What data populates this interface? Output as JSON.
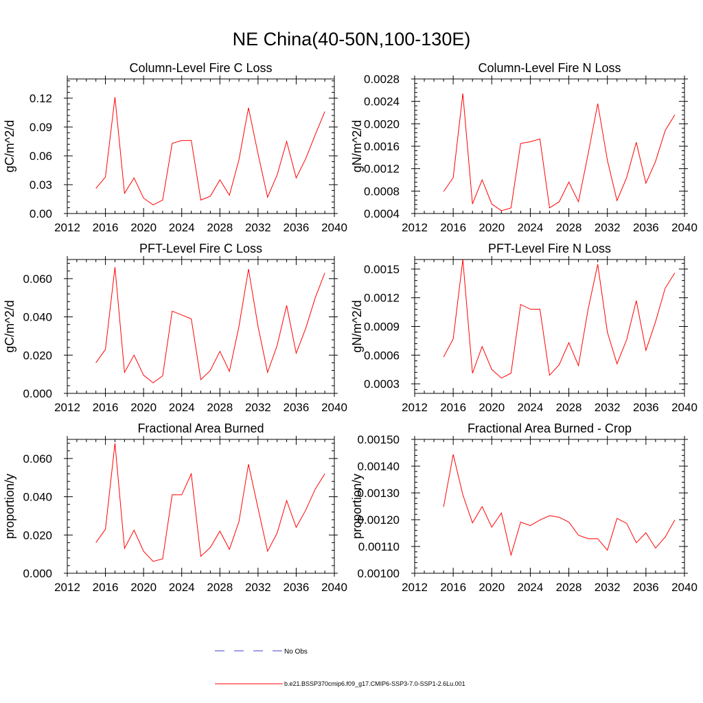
{
  "figure": {
    "title": "NE China(40-50N,100-130E)"
  },
  "legend": {
    "obs_label": "No Obs",
    "model_label": "b.e21.BSSP370cmip6.f09_g17.CMIP6-SSP3-7.0-SSP1-2.6Lu.001",
    "model_color": "#ff0000",
    "obs_color": "#3b3bd0"
  },
  "chart_data": [
    {
      "type": "line",
      "title": "Column-Level Fire C Loss",
      "ylabel": "gC/m^2/d",
      "xlabel": "",
      "xlim": [
        2012,
        2040
      ],
      "ylim": [
        0.0,
        0.14
      ],
      "xticks": [
        "2012",
        "2016",
        "2020",
        "2024",
        "2028",
        "2032",
        "2036",
        "2040"
      ],
      "yticks": [
        "0.00",
        "0.03",
        "0.06",
        "0.09",
        "0.12"
      ],
      "x": [
        2015,
        2016,
        2017,
        2018,
        2019,
        2020,
        2021,
        2022,
        2023,
        2024,
        2025,
        2026,
        2027,
        2028,
        2029,
        2030,
        2031,
        2032,
        2033,
        2034,
        2035,
        2036,
        2037,
        2038,
        2039
      ],
      "series": [
        {
          "values": [
            0.026,
            0.038,
            0.121,
            0.021,
            0.037,
            0.016,
            0.009,
            0.014,
            0.073,
            0.076,
            0.076,
            0.014,
            0.018,
            0.035,
            0.019,
            0.056,
            0.11,
            0.062,
            0.017,
            0.04,
            0.075,
            0.037,
            0.057,
            0.082,
            0.106
          ]
        }
      ]
    },
    {
      "type": "line",
      "title": "Column-Level Fire N Loss",
      "ylabel": "gN/m^2/d",
      "xlabel": "",
      "xlim": [
        2012,
        2040
      ],
      "ylim": [
        0.0004,
        0.0028
      ],
      "xticks": [
        "2012",
        "2016",
        "2020",
        "2024",
        "2028",
        "2032",
        "2036",
        "2040"
      ],
      "yticks": [
        "0.0004",
        "0.0008",
        "0.0012",
        "0.0016",
        "0.0020",
        "0.0024",
        "0.0028"
      ],
      "x": [
        2015,
        2016,
        2017,
        2018,
        2019,
        2020,
        2021,
        2022,
        2023,
        2024,
        2025,
        2026,
        2027,
        2028,
        2029,
        2030,
        2031,
        2032,
        2033,
        2034,
        2035,
        2036,
        2037,
        2038,
        2039
      ],
      "series": [
        {
          "values": [
            0.00079,
            0.00104,
            0.00254,
            0.00057,
            0.001,
            0.00057,
            0.00045,
            0.0005,
            0.00165,
            0.00168,
            0.00173,
            0.0005,
            0.00061,
            0.00096,
            0.00061,
            0.00146,
            0.00236,
            0.00135,
            0.00063,
            0.00104,
            0.00167,
            0.00094,
            0.00133,
            0.00188,
            0.00216
          ]
        }
      ]
    },
    {
      "type": "line",
      "title": "PFT-Level Fire C Loss",
      "ylabel": "gC/m^2/d",
      "xlabel": "",
      "xlim": [
        2012,
        2040
      ],
      "ylim": [
        0.0,
        0.07
      ],
      "xticks": [
        "2012",
        "2016",
        "2020",
        "2024",
        "2028",
        "2032",
        "2036",
        "2040"
      ],
      "yticks": [
        "0.000",
        "0.020",
        "0.040",
        "0.060"
      ],
      "x": [
        2015,
        2016,
        2017,
        2018,
        2019,
        2020,
        2021,
        2022,
        2023,
        2024,
        2025,
        2026,
        2027,
        2028,
        2029,
        2030,
        2031,
        2032,
        2033,
        2034,
        2035,
        2036,
        2037,
        2038,
        2039
      ],
      "series": [
        {
          "values": [
            0.016,
            0.023,
            0.066,
            0.011,
            0.02,
            0.0095,
            0.0055,
            0.0092,
            0.043,
            0.041,
            0.039,
            0.0072,
            0.012,
            0.022,
            0.0115,
            0.035,
            0.065,
            0.035,
            0.011,
            0.025,
            0.046,
            0.021,
            0.034,
            0.05,
            0.063
          ]
        }
      ]
    },
    {
      "type": "line",
      "title": "PFT-Level Fire N Loss",
      "ylabel": "gN/m^2/d",
      "xlabel": "",
      "xlim": [
        2012,
        2040
      ],
      "ylim": [
        0.0002,
        0.0016
      ],
      "xticks": [
        "2012",
        "2016",
        "2020",
        "2024",
        "2028",
        "2032",
        "2036",
        "2040"
      ],
      "yticks": [
        "0.0003",
        "0.0006",
        "0.0009",
        "0.0012",
        "0.0015"
      ],
      "x": [
        2015,
        2016,
        2017,
        2018,
        2019,
        2020,
        2021,
        2022,
        2023,
        2024,
        2025,
        2026,
        2027,
        2028,
        2029,
        2030,
        2031,
        2032,
        2033,
        2034,
        2035,
        2036,
        2037,
        2038,
        2039
      ],
      "series": [
        {
          "values": [
            0.00058,
            0.00077,
            0.0016,
            0.00041,
            0.00069,
            0.00045,
            0.00036,
            0.00041,
            0.00113,
            0.00108,
            0.00108,
            0.00039,
            0.0005,
            0.00073,
            0.00049,
            0.00108,
            0.00155,
            0.00084,
            0.00051,
            0.00076,
            0.00117,
            0.00065,
            0.00095,
            0.0013,
            0.00146
          ]
        }
      ]
    },
    {
      "type": "line",
      "title": "Fractional Area Burned",
      "ylabel": "proportion/y",
      "xlabel": "",
      "xlim": [
        2012,
        2040
      ],
      "ylim": [
        0.0,
        0.07
      ],
      "xticks": [
        "2012",
        "2016",
        "2020",
        "2024",
        "2028",
        "2032",
        "2036",
        "2040"
      ],
      "yticks": [
        "0.000",
        "0.020",
        "0.040",
        "0.060"
      ],
      "x": [
        2015,
        2016,
        2017,
        2018,
        2019,
        2020,
        2021,
        2022,
        2023,
        2024,
        2025,
        2026,
        2027,
        2028,
        2029,
        2030,
        2031,
        2032,
        2033,
        2034,
        2035,
        2036,
        2037,
        2038,
        2039
      ],
      "series": [
        {
          "values": [
            0.016,
            0.023,
            0.068,
            0.013,
            0.0225,
            0.0115,
            0.0062,
            0.0075,
            0.041,
            0.041,
            0.052,
            0.0088,
            0.0135,
            0.022,
            0.0125,
            0.027,
            0.057,
            0.034,
            0.0115,
            0.021,
            0.038,
            0.024,
            0.033,
            0.044,
            0.052
          ]
        }
      ]
    },
    {
      "type": "line",
      "title": "Fractional Area Burned - Crop",
      "ylabel": "proportion/y",
      "xlabel": "",
      "xlim": [
        2012,
        2040
      ],
      "ylim": [
        0.001,
        0.0015
      ],
      "xticks": [
        "2012",
        "2016",
        "2020",
        "2024",
        "2028",
        "2032",
        "2036",
        "2040"
      ],
      "yticks": [
        "0.00100",
        "0.00110",
        "0.00120",
        "0.00130",
        "0.00140",
        "0.00150"
      ],
      "x": [
        2015,
        2016,
        2017,
        2018,
        2019,
        2020,
        2021,
        2022,
        2023,
        2024,
        2025,
        2026,
        2027,
        2028,
        2029,
        2030,
        2031,
        2032,
        2033,
        2034,
        2035,
        2036,
        2037,
        2038,
        2039
      ],
      "series": [
        {
          "values": [
            0.001248,
            0.001444,
            0.001293,
            0.001188,
            0.001249,
            0.001172,
            0.001225,
            0.001068,
            0.001191,
            0.001178,
            0.001199,
            0.001215,
            0.001209,
            0.001191,
            0.001142,
            0.001129,
            0.001129,
            0.001086,
            0.001205,
            0.001186,
            0.001114,
            0.001151,
            0.001094,
            0.001135,
            0.001199
          ]
        }
      ]
    }
  ]
}
